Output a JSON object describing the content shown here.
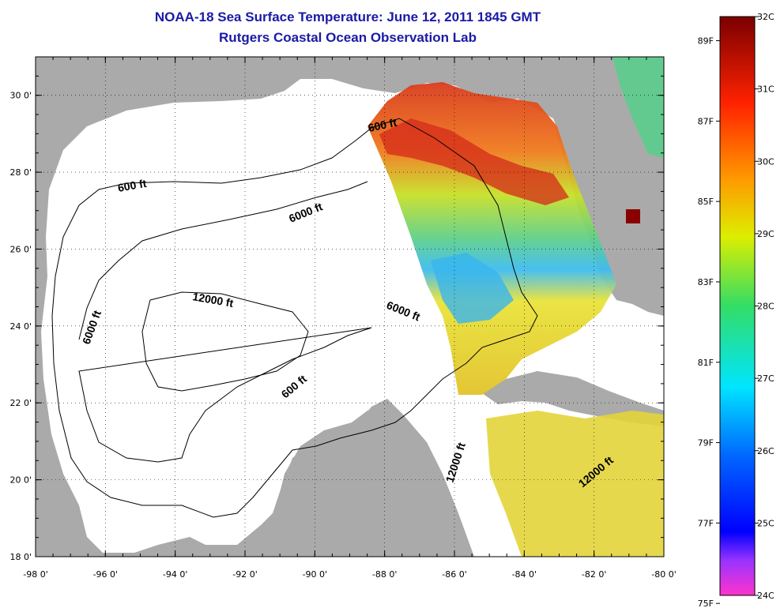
{
  "title": {
    "line1": "NOAA-18 Sea Surface Temperature:  June 12, 2011 1845 GMT",
    "line2": "Rutgers Coastal Ocean Observation Lab"
  },
  "map": {
    "lon_ticks": [
      "-98 0'",
      "-96 0'",
      "-94 0'",
      "-92 0'",
      "-90 0'",
      "-88 0'",
      "-86 0'",
      "-84 0'",
      "-82 0'",
      "-80 0'"
    ],
    "lat_ticks": [
      "30 0'",
      "28 0'",
      "26 0'",
      "24 0'",
      "22 0'",
      "20 0'",
      "18 0'"
    ],
    "lon_range": [
      -98,
      -80
    ],
    "lat_range": [
      18,
      31
    ],
    "grid": "dotted",
    "colors": {
      "land": "#aaaaaa",
      "ocean": "#ffffff",
      "contour": "#000000",
      "warm": "#e2361e",
      "cool": "#3fb8f0"
    },
    "contour_labels": [
      "600 ft",
      "600 ft",
      "6000 ft",
      "12000 ft",
      "6000 ft",
      "6000 ft",
      "600 ft",
      "12000 ft",
      "12000 ft"
    ]
  },
  "colorbar": {
    "celsius": [
      "32C",
      "31C",
      "30C",
      "29C",
      "28C",
      "27C",
      "26C",
      "25C",
      "24C"
    ],
    "fahrenheit": [
      "89F",
      "87F",
      "85F",
      "83F",
      "81F",
      "79F",
      "77F",
      "75F"
    ]
  }
}
